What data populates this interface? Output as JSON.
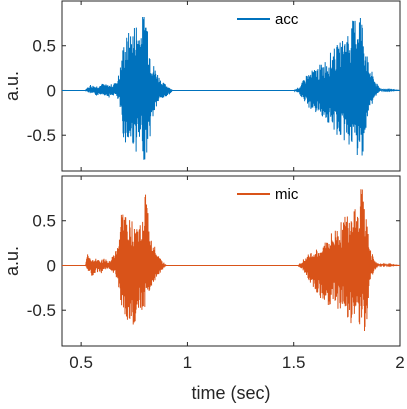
{
  "chart_data": [
    {
      "type": "line",
      "legend": {
        "label": "acc",
        "placement": "top-right"
      },
      "ylabel": "a.u.",
      "xlabel": "",
      "xlim": [
        0.41,
        2.0
      ],
      "ylim": [
        -0.9,
        1.0
      ],
      "yticks": [
        -0.5,
        0,
        0.5
      ],
      "ytick_labels": [
        "-0.5",
        "0",
        "0.5"
      ],
      "xtick_labels_shown": false,
      "grid": false,
      "color": "#0072BD",
      "envelope": [
        {
          "x": 0.41,
          "y": [
            0,
            0
          ]
        },
        {
          "x": 0.52,
          "y": [
            0,
            0
          ]
        },
        {
          "x": 0.54,
          "y": [
            -0.03,
            0.07
          ]
        },
        {
          "x": 0.57,
          "y": [
            -0.06,
            0.05
          ]
        },
        {
          "x": 0.6,
          "y": [
            -0.04,
            0.08
          ]
        },
        {
          "x": 0.63,
          "y": [
            -0.08,
            0.06
          ]
        },
        {
          "x": 0.66,
          "y": [
            -0.05,
            0.09
          ]
        },
        {
          "x": 0.68,
          "y": [
            -0.15,
            0.2
          ]
        },
        {
          "x": 0.7,
          "y": [
            -0.55,
            0.55
          ]
        },
        {
          "x": 0.72,
          "y": [
            -0.65,
            0.65
          ]
        },
        {
          "x": 0.74,
          "y": [
            -0.6,
            0.7
          ]
        },
        {
          "x": 0.76,
          "y": [
            -0.7,
            0.8
          ]
        },
        {
          "x": 0.78,
          "y": [
            -0.65,
            0.75
          ]
        },
        {
          "x": 0.8,
          "y": [
            -0.82,
            0.95
          ]
        },
        {
          "x": 0.81,
          "y": [
            -0.7,
            0.9
          ]
        },
        {
          "x": 0.82,
          "y": [
            -0.6,
            0.55
          ]
        },
        {
          "x": 0.84,
          "y": [
            -0.3,
            0.3
          ]
        },
        {
          "x": 0.86,
          "y": [
            -0.15,
            0.2
          ]
        },
        {
          "x": 0.88,
          "y": [
            -0.1,
            0.1
          ]
        },
        {
          "x": 0.91,
          "y": [
            -0.06,
            0.05
          ]
        },
        {
          "x": 0.93,
          "y": [
            0,
            0
          ]
        },
        {
          "x": 1.5,
          "y": [
            0,
            0
          ]
        },
        {
          "x": 1.53,
          "y": [
            -0.05,
            0.05
          ]
        },
        {
          "x": 1.56,
          "y": [
            -0.18,
            0.18
          ]
        },
        {
          "x": 1.6,
          "y": [
            -0.25,
            0.25
          ]
        },
        {
          "x": 1.64,
          "y": [
            -0.3,
            0.32
          ]
        },
        {
          "x": 1.68,
          "y": [
            -0.45,
            0.45
          ]
        },
        {
          "x": 1.72,
          "y": [
            -0.55,
            0.55
          ]
        },
        {
          "x": 1.76,
          "y": [
            -0.62,
            0.7
          ]
        },
        {
          "x": 1.79,
          "y": [
            -0.7,
            0.85
          ]
        },
        {
          "x": 1.81,
          "y": [
            -0.85,
            0.98
          ]
        },
        {
          "x": 1.83,
          "y": [
            -0.65,
            0.7
          ]
        },
        {
          "x": 1.85,
          "y": [
            -0.3,
            0.32
          ]
        },
        {
          "x": 1.87,
          "y": [
            -0.15,
            0.2
          ]
        },
        {
          "x": 1.89,
          "y": [
            -0.05,
            0.08
          ]
        },
        {
          "x": 1.91,
          "y": [
            0,
            0.02
          ]
        },
        {
          "x": 2.0,
          "y": [
            0,
            0
          ]
        }
      ]
    },
    {
      "type": "line",
      "legend": {
        "label": "mic",
        "placement": "top-right"
      },
      "ylabel": "a.u.",
      "xlabel": "time (sec)",
      "xlim": [
        0.41,
        2.0
      ],
      "ylim": [
        -0.9,
        1.0
      ],
      "yticks": [
        -0.5,
        0,
        0.5
      ],
      "ytick_labels": [
        "-0.5",
        "0",
        "0.5"
      ],
      "xticks": [
        0.5,
        1,
        1.5,
        2
      ],
      "xtick_labels": [
        "0.5",
        "1",
        "1.5",
        "2"
      ],
      "grid": false,
      "color": "#D95319",
      "envelope": [
        {
          "x": 0.41,
          "y": [
            0,
            0
          ]
        },
        {
          "x": 0.52,
          "y": [
            0,
            0
          ]
        },
        {
          "x": 0.53,
          "y": [
            -0.05,
            0.15
          ]
        },
        {
          "x": 0.55,
          "y": [
            -0.12,
            0.05
          ]
        },
        {
          "x": 0.57,
          "y": [
            -0.08,
            0.1
          ]
        },
        {
          "x": 0.59,
          "y": [
            -0.1,
            0.06
          ]
        },
        {
          "x": 0.61,
          "y": [
            -0.05,
            0.08
          ]
        },
        {
          "x": 0.63,
          "y": [
            -0.04,
            0.04
          ]
        },
        {
          "x": 0.65,
          "y": [
            -0.08,
            0.12
          ]
        },
        {
          "x": 0.67,
          "y": [
            -0.15,
            0.2
          ]
        },
        {
          "x": 0.69,
          "y": [
            -0.45,
            0.65
          ]
        },
        {
          "x": 0.71,
          "y": [
            -0.6,
            0.6
          ]
        },
        {
          "x": 0.73,
          "y": [
            -0.7,
            0.5
          ]
        },
        {
          "x": 0.75,
          "y": [
            -0.75,
            0.55
          ]
        },
        {
          "x": 0.77,
          "y": [
            -0.6,
            0.45
          ]
        },
        {
          "x": 0.79,
          "y": [
            -0.5,
            0.5
          ]
        },
        {
          "x": 0.8,
          "y": [
            -0.5,
            0.93
          ]
        },
        {
          "x": 0.82,
          "y": [
            -0.3,
            0.55
          ]
        },
        {
          "x": 0.84,
          "y": [
            -0.2,
            0.25
          ]
        },
        {
          "x": 0.86,
          "y": [
            -0.12,
            0.12
          ]
        },
        {
          "x": 0.88,
          "y": [
            -0.06,
            0.06
          ]
        },
        {
          "x": 0.9,
          "y": [
            0,
            0
          ]
        },
        {
          "x": 1.52,
          "y": [
            0,
            0
          ]
        },
        {
          "x": 1.55,
          "y": [
            -0.08,
            0.08
          ]
        },
        {
          "x": 1.58,
          "y": [
            -0.2,
            0.15
          ]
        },
        {
          "x": 1.62,
          "y": [
            -0.35,
            0.2
          ]
        },
        {
          "x": 1.66,
          "y": [
            -0.45,
            0.32
          ]
        },
        {
          "x": 1.7,
          "y": [
            -0.5,
            0.42
          ]
        },
        {
          "x": 1.74,
          "y": [
            -0.55,
            0.55
          ]
        },
        {
          "x": 1.77,
          "y": [
            -0.65,
            0.7
          ]
        },
        {
          "x": 1.8,
          "y": [
            -0.6,
            0.72
          ]
        },
        {
          "x": 1.82,
          "y": [
            -0.75,
            0.95
          ]
        },
        {
          "x": 1.84,
          "y": [
            -0.88,
            0.6
          ]
        },
        {
          "x": 1.86,
          "y": [
            -0.2,
            0.2
          ]
        },
        {
          "x": 1.88,
          "y": [
            -0.06,
            0.06
          ]
        },
        {
          "x": 1.9,
          "y": [
            0,
            0.02
          ]
        },
        {
          "x": 2.0,
          "y": [
            0,
            0
          ]
        }
      ]
    }
  ]
}
